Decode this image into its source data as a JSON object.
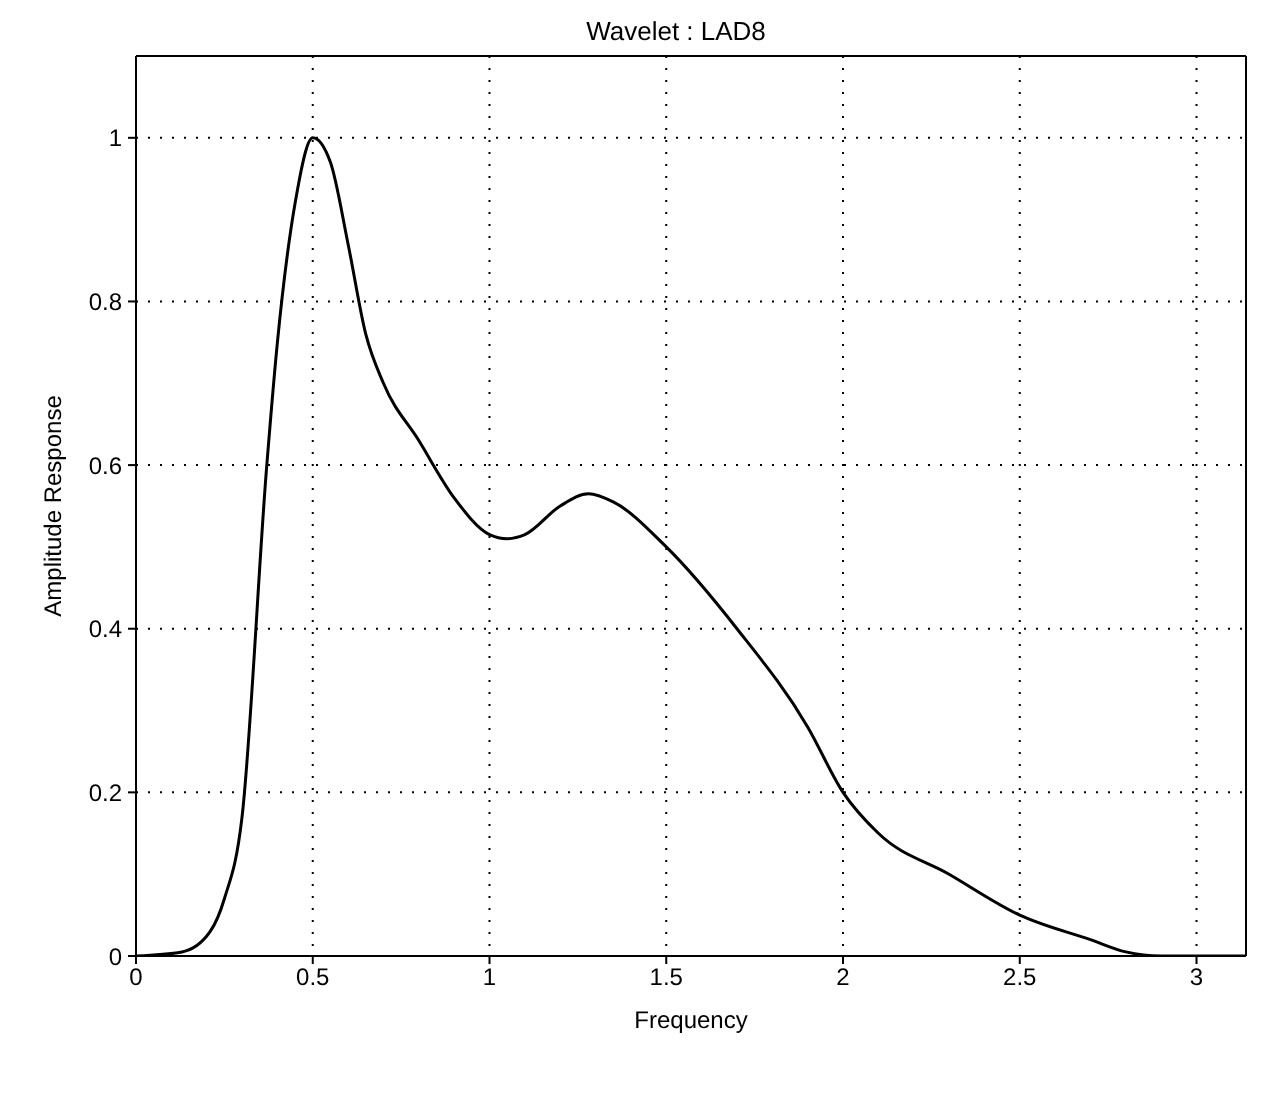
{
  "chart_data": {
    "type": "line",
    "title": "Wavelet : LAD8",
    "xlabel": "Frequency",
    "ylabel": "Amplitude Response",
    "x": [
      0,
      0.13,
      0.21,
      0.25,
      0.3,
      0.37,
      0.4,
      0.45,
      0.5,
      0.55,
      0.6,
      0.65,
      0.7,
      0.8,
      0.9,
      1.0,
      1.05,
      1.1,
      1.2,
      1.28,
      1.35,
      1.5,
      1.7,
      1.9,
      2.0,
      2.1,
      2.3,
      2.5,
      2.7,
      2.8,
      2.9,
      3.14
    ],
    "series": [
      {
        "color": "#000000",
        "values": [
          0,
          0.005,
          0.03,
          0.07,
          0.17,
          0.6,
          0.75,
          0.92,
          1.0,
          0.97,
          0.87,
          0.76,
          0.7,
          0.63,
          0.56,
          0.515,
          0.51,
          0.515,
          0.55,
          0.565,
          0.555,
          0.5,
          0.4,
          0.28,
          0.2,
          0.15,
          0.1,
          0.05,
          0.02,
          0.005,
          0,
          0
        ]
      }
    ],
    "xlim": [
      0,
      3.14
    ],
    "ylim": [
      0,
      1.1
    ],
    "xticks": [
      0,
      0.5,
      1,
      1.5,
      2,
      2.5,
      3
    ],
    "yticks": [
      0,
      0.2,
      0.4,
      0.6,
      0.8,
      1
    ],
    "grid": true,
    "legend": false,
    "marker": "none",
    "line_style": "solid"
  }
}
